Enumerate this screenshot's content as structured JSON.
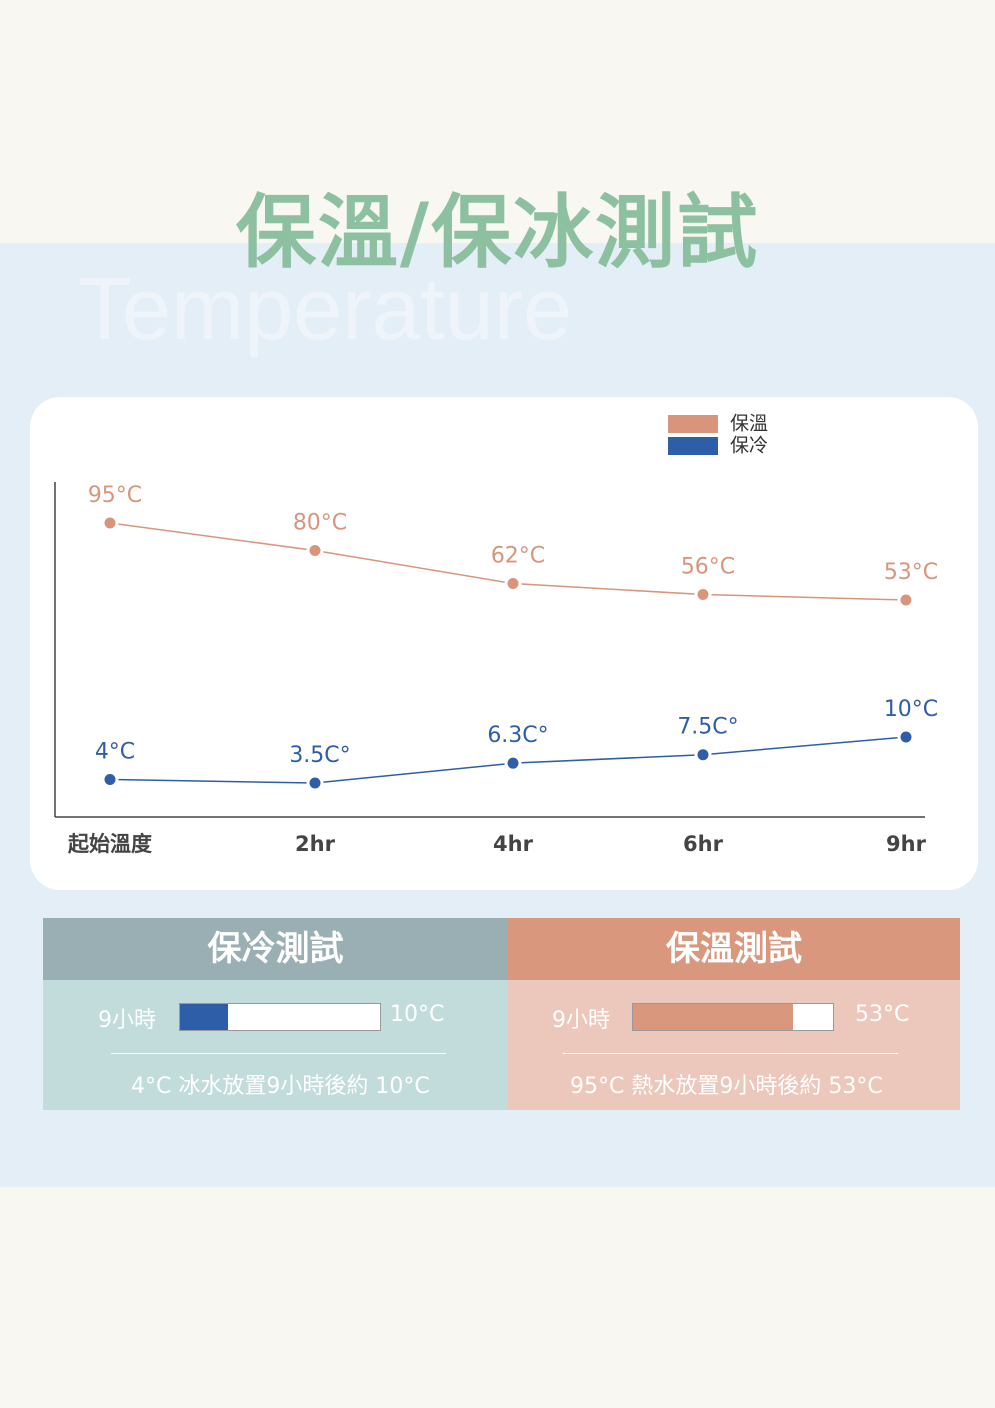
{
  "title": "保溫/保冰測試",
  "subtitle": "Temperature",
  "chart_data": {
    "type": "line",
    "categories": [
      "起始溫度",
      "2hr",
      "4hr",
      "6hr",
      "9hr"
    ],
    "series": [
      {
        "name": "保溫",
        "color": "#d9957c",
        "values": [
          95,
          80,
          62,
          56,
          53
        ],
        "value_labels": [
          "95°C",
          "80°C",
          "62°C",
          "56°C",
          "53°C"
        ]
      },
      {
        "name": "保冷",
        "color": "#2e5ea8",
        "values": [
          4,
          3.5,
          6.3,
          7.5,
          10
        ],
        "value_labels": [
          "4°C",
          "3.5C°",
          "6.3C°",
          "7.5C°",
          "10°C"
        ]
      }
    ]
  },
  "panels": [
    {
      "title": "保冷測試",
      "duration": "9小時",
      "result": "10°C",
      "note": "4°C 冰水放置9小時後約 10°C"
    },
    {
      "title": "保溫測試",
      "duration": "9小時",
      "result": "53°C",
      "note": "95°C 熱水放置9小時後約 53°C"
    }
  ]
}
